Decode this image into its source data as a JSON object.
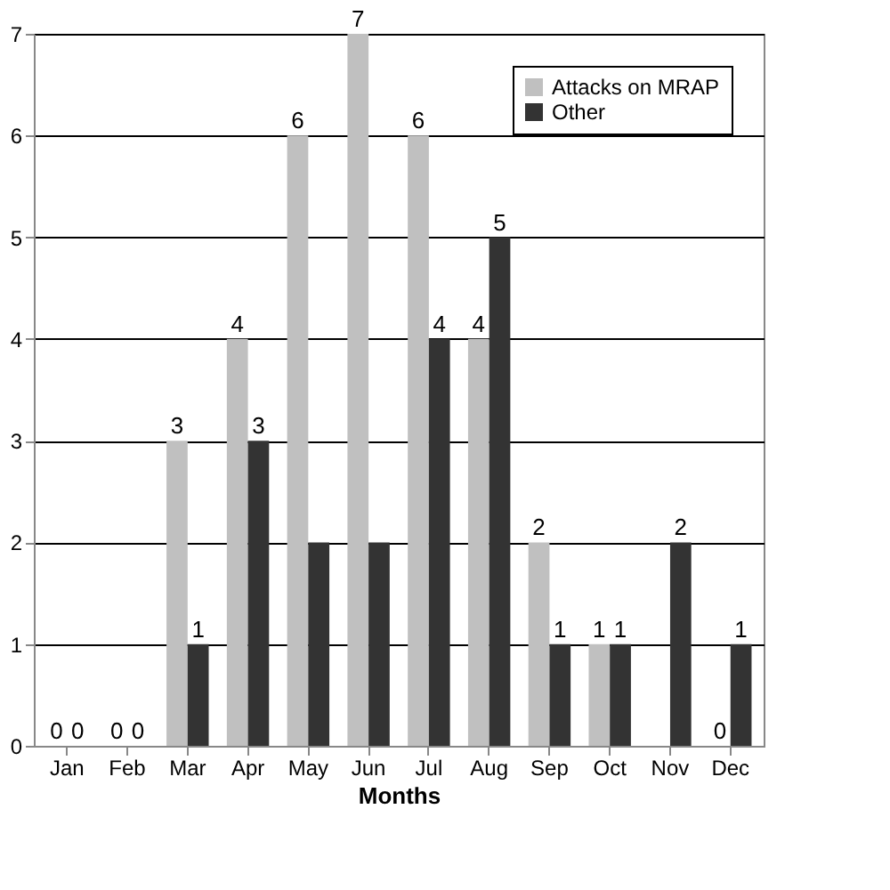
{
  "chart_data": {
    "type": "bar",
    "xlabel": "Months",
    "categories": [
      "Jan",
      "Feb",
      "Mar",
      "Apr",
      "May",
      "Jun",
      "Jul",
      "Aug",
      "Sep",
      "Oct",
      "Nov",
      "Dec"
    ],
    "series": [
      {
        "name": "Attacks on MRAP",
        "color": "#c0c0c0",
        "values": [
          0,
          0,
          3,
          4,
          6,
          7,
          6,
          4,
          2,
          1,
          0,
          0
        ],
        "value_labels": [
          "0",
          "0",
          "3",
          "4",
          "6",
          "7",
          "6",
          "4",
          "2",
          "1",
          null,
          "0"
        ]
      },
      {
        "name": "Other",
        "color": "#333333",
        "values": [
          0,
          0,
          1,
          3,
          2,
          2,
          4,
          5,
          1,
          1,
          2,
          1
        ],
        "value_labels": [
          "0",
          "0",
          "1",
          "3",
          null,
          null,
          "4",
          "5",
          "1",
          "1",
          "2",
          "1"
        ]
      }
    ],
    "ylim": [
      0,
      7
    ],
    "yticks": [
      0,
      1,
      2,
      3,
      4,
      5,
      6,
      7
    ],
    "grid": "y",
    "legend": "top right"
  }
}
